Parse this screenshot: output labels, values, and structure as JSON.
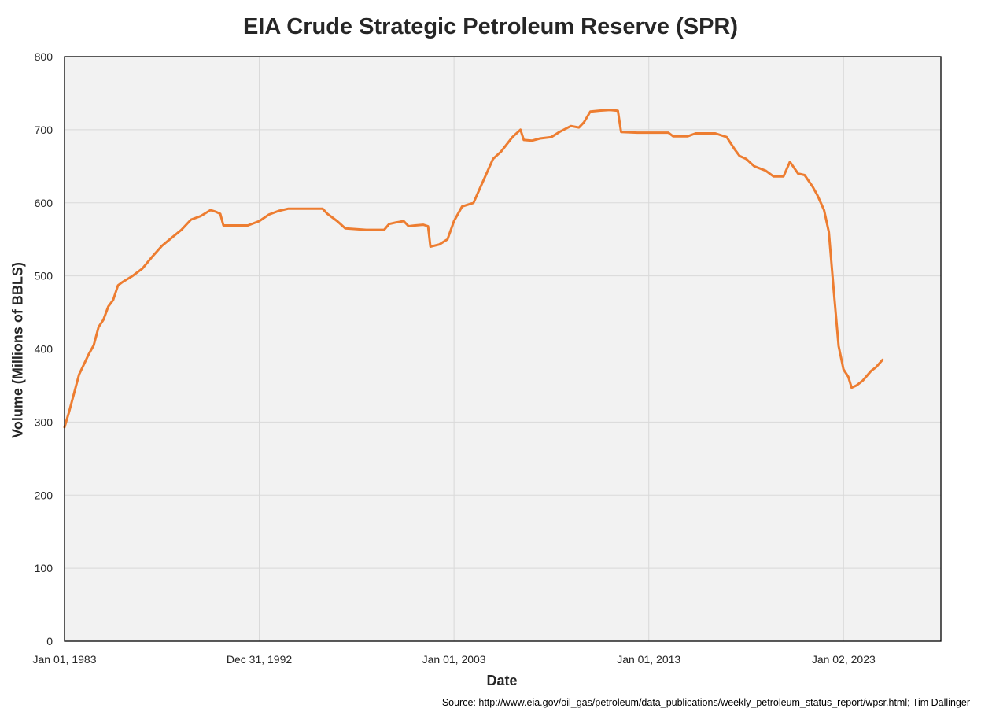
{
  "chart_data": {
    "type": "line",
    "title": "EIA Crude Strategic Petroleum Reserve (SPR)",
    "xlabel": "Date",
    "ylabel": "Volume (Millions of BBLS)",
    "ylim": [
      0,
      800
    ],
    "yticks": [
      0,
      100,
      200,
      300,
      400,
      500,
      600,
      700,
      800
    ],
    "xlim": [
      "1983-01-01",
      "2028-01-01"
    ],
    "xticks": [
      {
        "date": "1983-01-01",
        "label": "Jan 01, 1983"
      },
      {
        "date": "1992-12-31",
        "label": "Dec 31, 1992"
      },
      {
        "date": "2003-01-01",
        "label": "Jan 01, 2003"
      },
      {
        "date": "2013-01-01",
        "label": "Jan 01, 2013"
      },
      {
        "date": "2023-01-02",
        "label": "Jan 02, 2023"
      }
    ],
    "grid": true,
    "line_color": "#ED7D31",
    "plot_background": "#F2F2F2",
    "series": [
      {
        "name": "",
        "points": [
          [
            "1983-01-01",
            293
          ],
          [
            "1983-04-01",
            315
          ],
          [
            "1983-07-01",
            340
          ],
          [
            "1983-10-01",
            365
          ],
          [
            "1984-01-01",
            379
          ],
          [
            "1984-04-01",
            393
          ],
          [
            "1984-07-01",
            405
          ],
          [
            "1984-10-01",
            430
          ],
          [
            "1985-01-01",
            440
          ],
          [
            "1985-04-01",
            458
          ],
          [
            "1985-07-01",
            467
          ],
          [
            "1985-10-01",
            487
          ],
          [
            "1986-01-01",
            492
          ],
          [
            "1986-07-01",
            500
          ],
          [
            "1987-01-01",
            510
          ],
          [
            "1987-07-01",
            526
          ],
          [
            "1988-01-01",
            541
          ],
          [
            "1988-07-01",
            552
          ],
          [
            "1989-01-01",
            563
          ],
          [
            "1989-07-01",
            577
          ],
          [
            "1990-01-01",
            582
          ],
          [
            "1990-07-01",
            590
          ],
          [
            "1990-10-01",
            588
          ],
          [
            "1991-01-01",
            585
          ],
          [
            "1991-03-01",
            569
          ],
          [
            "1992-01-01",
            569
          ],
          [
            "1992-06-01",
            569
          ],
          [
            "1993-01-01",
            575
          ],
          [
            "1993-07-01",
            584
          ],
          [
            "1994-01-01",
            589
          ],
          [
            "1994-07-01",
            592
          ],
          [
            "1995-01-01",
            592
          ],
          [
            "1996-01-01",
            592
          ],
          [
            "1996-04-01",
            592
          ],
          [
            "1996-07-01",
            585
          ],
          [
            "1997-01-01",
            575
          ],
          [
            "1997-06-01",
            565
          ],
          [
            "1998-01-01",
            564
          ],
          [
            "1998-07-01",
            563
          ],
          [
            "1999-01-01",
            563
          ],
          [
            "1999-06-01",
            563
          ],
          [
            "1999-09-01",
            571
          ],
          [
            "2000-01-01",
            573
          ],
          [
            "2000-06-01",
            575
          ],
          [
            "2000-09-01",
            568
          ],
          [
            "2001-01-01",
            569
          ],
          [
            "2001-06-01",
            570
          ],
          [
            "2001-09-01",
            568
          ],
          [
            "2001-10-15",
            540
          ],
          [
            "2002-04-01",
            543
          ],
          [
            "2002-09-01",
            550
          ],
          [
            "2003-01-01",
            575
          ],
          [
            "2003-06-01",
            595
          ],
          [
            "2004-01-01",
            600
          ],
          [
            "2004-06-01",
            625
          ],
          [
            "2005-01-01",
            660
          ],
          [
            "2005-06-01",
            670
          ],
          [
            "2006-01-01",
            690
          ],
          [
            "2006-06-01",
            700
          ],
          [
            "2006-08-01",
            686
          ],
          [
            "2007-01-01",
            685
          ],
          [
            "2007-06-01",
            688
          ],
          [
            "2008-01-01",
            690
          ],
          [
            "2008-06-01",
            697
          ],
          [
            "2009-01-01",
            705
          ],
          [
            "2009-06-01",
            703
          ],
          [
            "2009-09-01",
            710
          ],
          [
            "2010-01-01",
            725
          ],
          [
            "2010-06-01",
            726
          ],
          [
            "2011-01-01",
            727
          ],
          [
            "2011-06-01",
            726
          ],
          [
            "2011-08-01",
            697
          ],
          [
            "2012-06-01",
            696
          ],
          [
            "2013-01-01",
            696
          ],
          [
            "2014-01-01",
            696
          ],
          [
            "2014-04-01",
            691
          ],
          [
            "2015-01-01",
            691
          ],
          [
            "2015-06-01",
            695
          ],
          [
            "2016-06-01",
            695
          ],
          [
            "2017-01-01",
            690
          ],
          [
            "2017-06-01",
            673
          ],
          [
            "2017-09-01",
            664
          ],
          [
            "2018-01-01",
            660
          ],
          [
            "2018-06-01",
            650
          ],
          [
            "2019-01-01",
            644
          ],
          [
            "2019-06-01",
            636
          ],
          [
            "2019-12-01",
            636
          ],
          [
            "2020-04-01",
            656
          ],
          [
            "2020-09-01",
            640
          ],
          [
            "2021-01-01",
            638
          ],
          [
            "2021-06-01",
            622
          ],
          [
            "2021-09-01",
            610
          ],
          [
            "2022-01-01",
            590
          ],
          [
            "2022-04-01",
            560
          ],
          [
            "2022-07-01",
            480
          ],
          [
            "2022-10-01",
            404
          ],
          [
            "2023-01-01",
            372
          ],
          [
            "2023-04-01",
            362
          ],
          [
            "2023-06-01",
            347
          ],
          [
            "2023-09-01",
            350
          ],
          [
            "2024-01-01",
            357
          ],
          [
            "2024-06-01",
            370
          ],
          [
            "2024-09-01",
            375
          ],
          [
            "2025-01-01",
            385
          ]
        ]
      }
    ],
    "source": "Source: http://www.eia.gov/oil_gas/petroleum/data_publications/weekly_petroleum_status_report/wpsr.html; Tim Dallinger"
  }
}
